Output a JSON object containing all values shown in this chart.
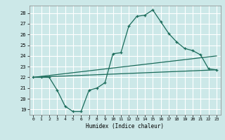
{
  "xlabel": "Humidex (Indice chaleur)",
  "bg_color": "#cce8e8",
  "grid_color": "#ffffff",
  "line_color": "#1a6b5a",
  "xlim": [
    -0.5,
    23.5
  ],
  "ylim": [
    18.5,
    28.7
  ],
  "xticks": [
    0,
    1,
    2,
    3,
    4,
    5,
    6,
    7,
    8,
    9,
    10,
    11,
    12,
    13,
    14,
    15,
    16,
    17,
    18,
    19,
    20,
    21,
    22,
    23
  ],
  "yticks": [
    19,
    20,
    21,
    22,
    23,
    24,
    25,
    26,
    27,
    28
  ],
  "main_line": {
    "x": [
      0,
      1,
      2,
      3,
      4,
      5,
      6,
      7,
      8,
      9,
      10,
      11,
      12,
      13,
      14,
      15,
      16,
      17,
      18,
      19,
      20,
      21,
      22,
      23
    ],
    "y": [
      22.0,
      22.0,
      22.0,
      20.8,
      19.3,
      18.8,
      18.8,
      20.8,
      21.0,
      21.5,
      24.2,
      24.3,
      26.8,
      27.7,
      27.8,
      28.3,
      27.2,
      26.1,
      25.3,
      24.7,
      24.5,
      24.1,
      22.8,
      22.7
    ]
  },
  "upper_line": {
    "x": [
      0,
      23
    ],
    "y": [
      22.0,
      24.0
    ]
  },
  "lower_line": {
    "x": [
      0,
      23
    ],
    "y": [
      22.0,
      22.7
    ]
  }
}
